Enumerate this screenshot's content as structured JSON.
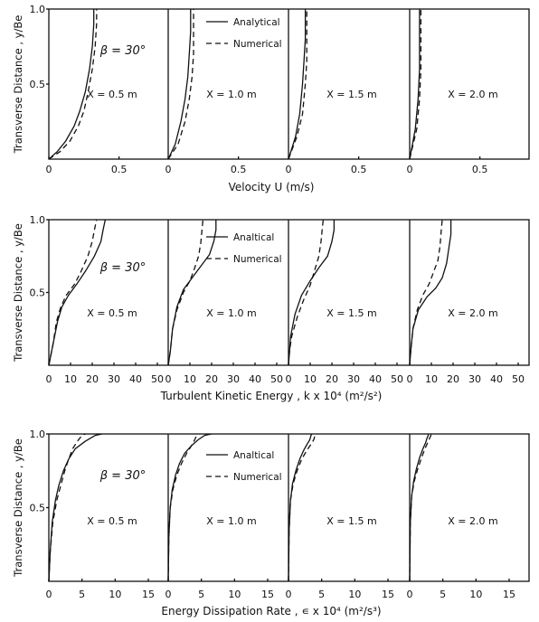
{
  "chart_data": [
    {
      "type": "line",
      "ylabel": "Transverse Distance , y/Be",
      "xlabel": "Velocity U (m/s)",
      "beta_label": "β = 30°",
      "y_ticks": [
        "1.0",
        "0.5"
      ],
      "x_ticks": [
        "0",
        "0.5"
      ],
      "xlim": [
        0,
        0.85
      ],
      "ylim": [
        0,
        1.0
      ],
      "legend": {
        "placement": "top-right of second panel",
        "entries": [
          "Analytical",
          "Numerical"
        ]
      },
      "panels": [
        {
          "label": "X = 0.5 m",
          "series": [
            {
              "name": "Analytical",
              "style": "solid",
              "x": [
                0,
                0.06,
                0.12,
                0.18,
                0.22,
                0.26,
                0.29,
                0.31,
                0.32,
                0.32
              ],
              "y": [
                0,
                0.05,
                0.12,
                0.22,
                0.32,
                0.45,
                0.6,
                0.75,
                0.9,
                1.0
              ]
            },
            {
              "name": "Numerical",
              "style": "dashed",
              "x": [
                0,
                0.08,
                0.15,
                0.21,
                0.25,
                0.28,
                0.31,
                0.33,
                0.34,
                0.34
              ],
              "y": [
                0,
                0.05,
                0.12,
                0.22,
                0.32,
                0.45,
                0.6,
                0.75,
                0.9,
                1.0
              ]
            }
          ]
        },
        {
          "label": "X = 1.0 m",
          "series": [
            {
              "name": "Analytical",
              "style": "solid",
              "x": [
                0,
                0.05,
                0.09,
                0.12,
                0.14,
                0.15,
                0.16,
                0.16
              ],
              "y": [
                0,
                0.1,
                0.25,
                0.4,
                0.55,
                0.7,
                0.85,
                1.0
              ]
            },
            {
              "name": "Numerical",
              "style": "dashed",
              "x": [
                0,
                0.07,
                0.12,
                0.15,
                0.17,
                0.18,
                0.18,
                0.18
              ],
              "y": [
                0,
                0.1,
                0.25,
                0.4,
                0.55,
                0.7,
                0.85,
                1.0
              ]
            }
          ]
        },
        {
          "label": "X = 1.5 m",
          "series": [
            {
              "name": "Analytical",
              "style": "solid",
              "x": [
                0,
                0.05,
                0.08,
                0.1,
                0.11,
                0.12,
                0.12
              ],
              "y": [
                0,
                0.15,
                0.3,
                0.5,
                0.65,
                0.8,
                1.0
              ]
            },
            {
              "name": "Numerical",
              "style": "dashed",
              "x": [
                0,
                0.06,
                0.1,
                0.12,
                0.13,
                0.13,
                0.13
              ],
              "y": [
                0,
                0.15,
                0.3,
                0.5,
                0.65,
                0.8,
                1.0
              ]
            }
          ]
        },
        {
          "label": "X = 2.0 m",
          "series": [
            {
              "name": "Analytical",
              "style": "solid",
              "x": [
                0,
                0.04,
                0.06,
                0.07,
                0.07,
                0.07
              ],
              "y": [
                0,
                0.2,
                0.4,
                0.6,
                0.8,
                1.0
              ]
            },
            {
              "name": "Numerical",
              "style": "dashed",
              "x": [
                0,
                0.05,
                0.07,
                0.08,
                0.08,
                0.08
              ],
              "y": [
                0,
                0.2,
                0.4,
                0.6,
                0.8,
                1.0
              ]
            }
          ]
        }
      ]
    },
    {
      "type": "line",
      "ylabel": "Transverse Distance , y/Be",
      "xlabel": "Turbulent Kinetic Energy , k x 10⁴ (m²/s²)",
      "beta_label": "β = 30°",
      "y_ticks": [
        "1.0",
        "0.5"
      ],
      "x_ticks": [
        "0",
        "10",
        "20",
        "30",
        "40",
        "50"
      ],
      "xlim": [
        0,
        55
      ],
      "ylim": [
        0,
        1.0
      ],
      "legend": {
        "placement": "top-right of second panel",
        "entries": [
          "Analtical",
          "Numerical"
        ]
      },
      "panels": [
        {
          "label": "X = 0.5 m",
          "series": [
            {
              "name": "Analtical",
              "style": "solid",
              "x": [
                0,
                2,
                4,
                6,
                9,
                13,
                17,
                21,
                24,
                25,
                26
              ],
              "y": [
                0,
                0.15,
                0.3,
                0.4,
                0.48,
                0.56,
                0.65,
                0.75,
                0.85,
                0.93,
                1.0
              ]
            },
            {
              "name": "Numerical",
              "style": "dashed",
              "x": [
                0,
                2,
                3.5,
                5.5,
                8,
                12,
                15,
                18,
                20,
                21,
                22
              ],
              "y": [
                0,
                0.15,
                0.3,
                0.4,
                0.48,
                0.56,
                0.65,
                0.75,
                0.85,
                0.93,
                1.0
              ]
            }
          ]
        },
        {
          "label": "X = 1.0 m",
          "series": [
            {
              "name": "Analtical",
              "style": "solid",
              "x": [
                0,
                1,
                2,
                4,
                7,
                11,
                15,
                19,
                21,
                22,
                22
              ],
              "y": [
                0,
                0.1,
                0.25,
                0.4,
                0.52,
                0.6,
                0.68,
                0.76,
                0.85,
                0.93,
                1.0
              ]
            },
            {
              "name": "Numerical",
              "style": "dashed",
              "x": [
                0,
                1,
                2,
                4,
                7,
                10,
                12,
                14,
                15,
                15.5,
                16
              ],
              "y": [
                0,
                0.1,
                0.25,
                0.38,
                0.5,
                0.58,
                0.66,
                0.75,
                0.84,
                0.92,
                1.0
              ]
            }
          ]
        },
        {
          "label": "X = 1.5 m",
          "series": [
            {
              "name": "Analtical",
              "style": "solid",
              "x": [
                0,
                0.5,
                1,
                3,
                6,
                10,
                14,
                18,
                20,
                21,
                21
              ],
              "y": [
                0,
                0.1,
                0.2,
                0.35,
                0.48,
                0.58,
                0.67,
                0.75,
                0.85,
                0.93,
                1.0
              ]
            },
            {
              "name": "Numerical",
              "style": "dashed",
              "x": [
                0,
                0.5,
                1.5,
                4,
                7,
                10,
                12,
                14,
                15,
                15.5,
                16
              ],
              "y": [
                0,
                0.1,
                0.2,
                0.33,
                0.45,
                0.55,
                0.65,
                0.75,
                0.85,
                0.93,
                1.0
              ]
            }
          ]
        },
        {
          "label": "X = 2.0 m",
          "series": [
            {
              "name": "Analtical",
              "style": "solid",
              "x": [
                0,
                0.5,
                1.5,
                4,
                8,
                12,
                15,
                17,
                18,
                19,
                19
              ],
              "y": [
                0,
                0.1,
                0.25,
                0.38,
                0.47,
                0.53,
                0.6,
                0.7,
                0.8,
                0.9,
                1.0
              ]
            },
            {
              "name": "Numerical",
              "style": "dashed",
              "x": [
                0,
                0.5,
                1.5,
                3.5,
                6,
                9,
                11,
                13,
                14,
                14.5,
                15
              ],
              "y": [
                0,
                0.1,
                0.25,
                0.38,
                0.48,
                0.56,
                0.64,
                0.72,
                0.82,
                0.92,
                1.0
              ]
            }
          ]
        }
      ]
    },
    {
      "type": "line",
      "ylabel": "Transverse Distance , y/Be",
      "xlabel": "Energy Dissipation Rate , ∊ x 10⁴ (m²/s³)",
      "beta_label": "β = 30°",
      "y_ticks": [
        "1.0",
        "0.5"
      ],
      "x_ticks": [
        "0",
        "5",
        "10",
        "15"
      ],
      "xlim": [
        0,
        18
      ],
      "ylim": [
        0,
        1.0
      ],
      "legend": {
        "placement": "top-right of second panel",
        "entries": [
          "Analtical",
          "Numerical"
        ]
      },
      "panels": [
        {
          "label": "X = 0.5 m",
          "series": [
            {
              "name": "Analtical",
              "style": "solid",
              "x": [
                0,
                0.2,
                0.5,
                1.0,
                1.5,
                2.2,
                3.0,
                4.0,
                5.5,
                7.0,
                8.0
              ],
              "y": [
                0,
                0.2,
                0.4,
                0.55,
                0.65,
                0.75,
                0.83,
                0.9,
                0.95,
                0.99,
                1.0
              ]
            },
            {
              "name": "Numerical",
              "style": "dashed",
              "x": [
                0,
                0.2,
                0.6,
                1.2,
                1.8,
                2.4,
                3.0,
                3.6,
                4.3,
                5.0,
                5.5
              ],
              "y": [
                0,
                0.2,
                0.4,
                0.55,
                0.65,
                0.75,
                0.83,
                0.9,
                0.95,
                0.99,
                1.0
              ]
            }
          ]
        },
        {
          "label": "X = 1.0 m",
          "series": [
            {
              "name": "Analtical",
              "style": "solid",
              "x": [
                0,
                0.1,
                0.3,
                0.6,
                1.1,
                1.7,
                2.5,
                3.5,
                4.5,
                5.5,
                6.5
              ],
              "y": [
                0,
                0.3,
                0.5,
                0.62,
                0.72,
                0.8,
                0.87,
                0.92,
                0.96,
                0.99,
                1.0
              ]
            },
            {
              "name": "Numerical",
              "style": "dashed",
              "x": [
                0,
                0.1,
                0.3,
                0.7,
                1.3,
                2.0,
                2.8,
                3.5,
                4.0,
                4.3,
                4.5
              ],
              "y": [
                0,
                0.3,
                0.5,
                0.62,
                0.72,
                0.8,
                0.87,
                0.92,
                0.96,
                0.99,
                1.0
              ]
            }
          ]
        },
        {
          "label": "X = 1.5 m",
          "series": [
            {
              "name": "Analtical",
              "style": "solid",
              "x": [
                0,
                0.1,
                0.3,
                0.6,
                1.1,
                1.7,
                2.3,
                2.8,
                3.2,
                3.4,
                3.5
              ],
              "y": [
                0,
                0.35,
                0.55,
                0.66,
                0.75,
                0.83,
                0.89,
                0.93,
                0.96,
                0.99,
                1.0
              ]
            },
            {
              "name": "Numerical",
              "style": "dashed",
              "x": [
                0,
                0.1,
                0.3,
                0.7,
                1.3,
                2.0,
                2.8,
                3.4,
                3.8,
                4.0,
                4.0
              ],
              "y": [
                0,
                0.35,
                0.55,
                0.66,
                0.75,
                0.83,
                0.89,
                0.93,
                0.96,
                0.99,
                1.0
              ]
            }
          ]
        },
        {
          "label": "X = 2.0 m",
          "series": [
            {
              "name": "Analtical",
              "style": "solid",
              "x": [
                0,
                0.1,
                0.3,
                0.6,
                1.0,
                1.5,
                2.0,
                2.4,
                2.6,
                2.8,
                2.8
              ],
              "y": [
                0,
                0.4,
                0.58,
                0.68,
                0.76,
                0.84,
                0.9,
                0.94,
                0.97,
                0.99,
                1.0
              ]
            },
            {
              "name": "Numerical",
              "style": "dashed",
              "x": [
                0,
                0.1,
                0.3,
                0.7,
                1.2,
                1.8,
                2.3,
                2.7,
                3.0,
                3.2,
                3.2
              ],
              "y": [
                0,
                0.4,
                0.58,
                0.68,
                0.76,
                0.84,
                0.9,
                0.94,
                0.97,
                0.99,
                1.0
              ]
            }
          ]
        }
      ]
    }
  ]
}
